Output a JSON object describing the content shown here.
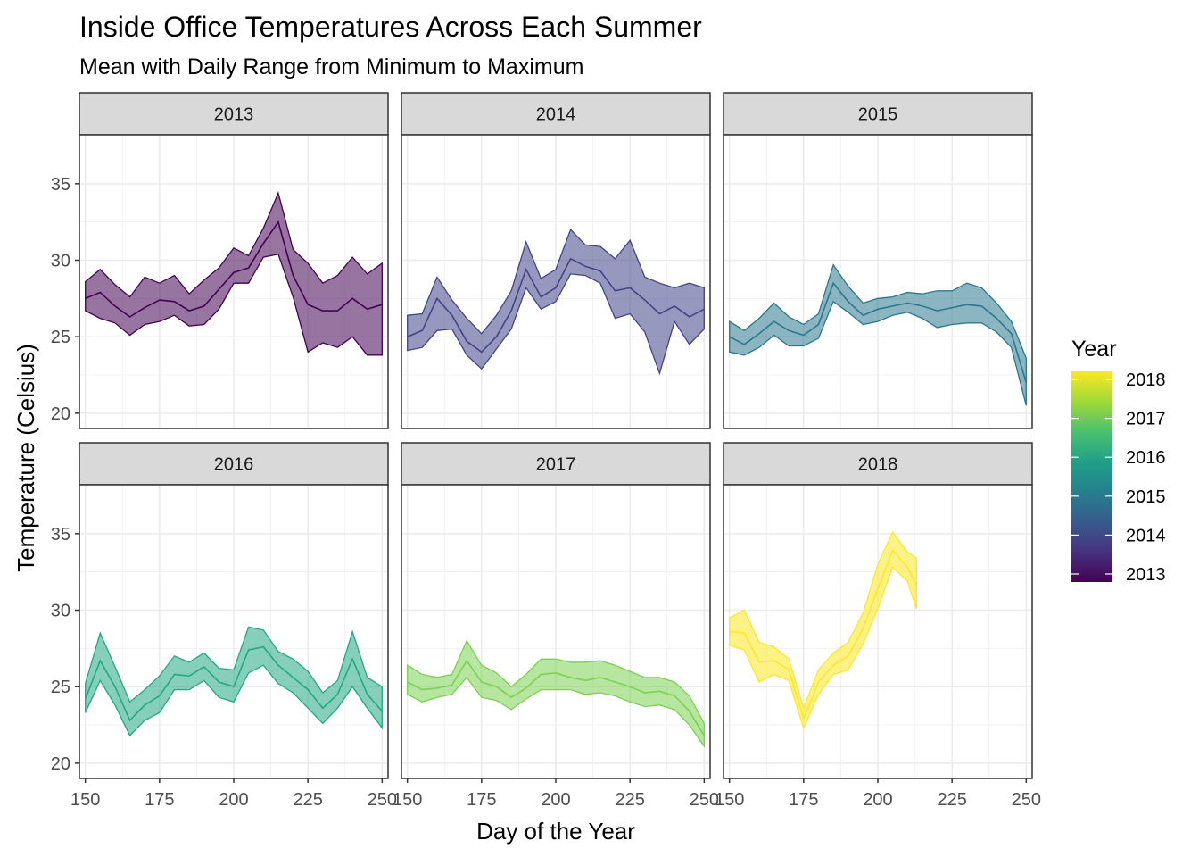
{
  "chart_data": {
    "type": "area",
    "title": "Inside Office Temperatures Across Each Summer",
    "subtitle": "Mean with Daily Range from Minimum to Maximum",
    "xlabel": "Day of the Year",
    "ylabel": "Temperature (Celsius)",
    "xlim": [
      148,
      252
    ],
    "ylim": [
      19.0,
      38.2
    ],
    "x_ticks": [
      150,
      175,
      200,
      225,
      250
    ],
    "y_ticks": [
      20,
      25,
      30,
      35
    ],
    "grid": true,
    "legend": {
      "title": "Year",
      "position": "right",
      "labels": [
        "2018",
        "2017",
        "2016",
        "2015",
        "2014",
        "2013"
      ],
      "gradient_colors": [
        "#fde725",
        "#a0da39",
        "#4ac16d",
        "#1fa187",
        "#277f8e",
        "#365c8d",
        "#46327e",
        "#440154"
      ]
    },
    "facets": [
      {
        "year": "2013",
        "color": "#440154",
        "series": [
          {
            "x": 150,
            "min": 26.7,
            "mean": 27.5,
            "max": 28.6
          },
          {
            "x": 155,
            "min": 26.2,
            "mean": 27.9,
            "max": 29.4
          },
          {
            "x": 160,
            "min": 25.9,
            "mean": 27.0,
            "max": 28.4
          },
          {
            "x": 165,
            "min": 25.1,
            "mean": 26.3,
            "max": 27.6
          },
          {
            "x": 170,
            "min": 25.8,
            "mean": 26.9,
            "max": 28.9
          },
          {
            "x": 175,
            "min": 26.0,
            "mean": 27.4,
            "max": 28.5
          },
          {
            "x": 180,
            "min": 26.4,
            "mean": 27.3,
            "max": 29.0
          },
          {
            "x": 185,
            "min": 25.7,
            "mean": 26.7,
            "max": 27.8
          },
          {
            "x": 190,
            "min": 25.8,
            "mean": 27.0,
            "max": 28.7
          },
          {
            "x": 195,
            "min": 26.8,
            "mean": 28.1,
            "max": 29.5
          },
          {
            "x": 200,
            "min": 28.5,
            "mean": 29.2,
            "max": 30.8
          },
          {
            "x": 205,
            "min": 28.5,
            "mean": 29.5,
            "max": 30.3
          },
          {
            "x": 210,
            "min": 30.2,
            "mean": 31.1,
            "max": 32.1
          },
          {
            "x": 215,
            "min": 30.4,
            "mean": 32.5,
            "max": 34.4
          },
          {
            "x": 220,
            "min": 27.6,
            "mean": 29.0,
            "max": 30.7
          },
          {
            "x": 225,
            "min": 24.0,
            "mean": 27.1,
            "max": 29.8
          },
          {
            "x": 230,
            "min": 24.6,
            "mean": 26.7,
            "max": 28.5
          },
          {
            "x": 235,
            "min": 24.3,
            "mean": 26.7,
            "max": 29.0
          },
          {
            "x": 240,
            "min": 25.0,
            "mean": 27.5,
            "max": 30.2
          },
          {
            "x": 245,
            "min": 23.8,
            "mean": 26.8,
            "max": 29.1
          },
          {
            "x": 250,
            "min": 23.8,
            "mean": 27.1,
            "max": 29.8
          }
        ]
      },
      {
        "year": "2014",
        "color": "#414487",
        "series": [
          {
            "x": 150,
            "min": 24.1,
            "mean": 25.0,
            "max": 26.4
          },
          {
            "x": 155,
            "min": 24.3,
            "mean": 25.4,
            "max": 26.5
          },
          {
            "x": 160,
            "min": 25.4,
            "mean": 27.5,
            "max": 28.9
          },
          {
            "x": 165,
            "min": 25.5,
            "mean": 26.4,
            "max": 27.4
          },
          {
            "x": 170,
            "min": 23.8,
            "mean": 24.7,
            "max": 26.2
          },
          {
            "x": 175,
            "min": 22.9,
            "mean": 24.0,
            "max": 25.2
          },
          {
            "x": 180,
            "min": 24.2,
            "mean": 25.0,
            "max": 26.4
          },
          {
            "x": 185,
            "min": 25.5,
            "mean": 26.7,
            "max": 28.0
          },
          {
            "x": 190,
            "min": 28.2,
            "mean": 29.4,
            "max": 31.2
          },
          {
            "x": 195,
            "min": 26.8,
            "mean": 27.6,
            "max": 28.8
          },
          {
            "x": 200,
            "min": 27.3,
            "mean": 28.2,
            "max": 29.4
          },
          {
            "x": 205,
            "min": 29.1,
            "mean": 30.1,
            "max": 32.0
          },
          {
            "x": 210,
            "min": 29.0,
            "mean": 29.6,
            "max": 31.0
          },
          {
            "x": 215,
            "min": 28.5,
            "mean": 29.3,
            "max": 30.9
          },
          {
            "x": 220,
            "min": 26.2,
            "mean": 28.0,
            "max": 30.1
          },
          {
            "x": 225,
            "min": 26.5,
            "mean": 28.2,
            "max": 31.3
          },
          {
            "x": 230,
            "min": 25.3,
            "mean": 27.4,
            "max": 28.9
          },
          {
            "x": 235,
            "min": 22.6,
            "mean": 26.5,
            "max": 28.5
          },
          {
            "x": 240,
            "min": 26.0,
            "mean": 27.0,
            "max": 28.2
          },
          {
            "x": 245,
            "min": 24.5,
            "mean": 26.3,
            "max": 28.5
          },
          {
            "x": 250,
            "min": 25.5,
            "mean": 26.8,
            "max": 28.2
          }
        ]
      },
      {
        "year": "2015",
        "color": "#2a788e",
        "series": [
          {
            "x": 150,
            "min": 24.0,
            "mean": 25.0,
            "max": 26.0
          },
          {
            "x": 155,
            "min": 23.8,
            "mean": 24.5,
            "max": 25.4
          },
          {
            "x": 160,
            "min": 24.3,
            "mean": 25.2,
            "max": 26.2
          },
          {
            "x": 165,
            "min": 25.1,
            "mean": 26.0,
            "max": 27.2
          },
          {
            "x": 170,
            "min": 24.4,
            "mean": 25.4,
            "max": 26.3
          },
          {
            "x": 175,
            "min": 24.4,
            "mean": 25.1,
            "max": 25.8
          },
          {
            "x": 180,
            "min": 24.9,
            "mean": 25.8,
            "max": 26.5
          },
          {
            "x": 185,
            "min": 27.3,
            "mean": 28.5,
            "max": 29.7
          },
          {
            "x": 190,
            "min": 26.6,
            "mean": 27.3,
            "max": 28.3
          },
          {
            "x": 195,
            "min": 25.8,
            "mean": 26.4,
            "max": 27.2
          },
          {
            "x": 200,
            "min": 26.0,
            "mean": 26.8,
            "max": 27.5
          },
          {
            "x": 205,
            "min": 26.4,
            "mean": 27.0,
            "max": 27.6
          },
          {
            "x": 210,
            "min": 26.6,
            "mean": 27.2,
            "max": 27.9
          },
          {
            "x": 215,
            "min": 26.2,
            "mean": 27.0,
            "max": 27.8
          },
          {
            "x": 220,
            "min": 25.6,
            "mean": 26.7,
            "max": 28.0
          },
          {
            "x": 225,
            "min": 25.8,
            "mean": 26.9,
            "max": 28.0
          },
          {
            "x": 230,
            "min": 25.9,
            "mean": 27.1,
            "max": 28.5
          },
          {
            "x": 235,
            "min": 25.9,
            "mean": 27.0,
            "max": 28.2
          },
          {
            "x": 240,
            "min": 25.3,
            "mean": 26.2,
            "max": 27.2
          },
          {
            "x": 245,
            "min": 24.3,
            "mean": 25.2,
            "max": 26.0
          },
          {
            "x": 250,
            "min": 20.5,
            "mean": 22.0,
            "max": 23.6
          }
        ]
      },
      {
        "year": "2016",
        "color": "#22a884",
        "series": [
          {
            "x": 150,
            "min": 23.3,
            "mean": 24.2,
            "max": 25.2
          },
          {
            "x": 155,
            "min": 25.4,
            "mean": 26.7,
            "max": 28.5
          },
          {
            "x": 160,
            "min": 23.8,
            "mean": 25.0,
            "max": 26.3
          },
          {
            "x": 165,
            "min": 21.8,
            "mean": 22.8,
            "max": 24.0
          },
          {
            "x": 170,
            "min": 22.8,
            "mean": 23.8,
            "max": 24.8
          },
          {
            "x": 175,
            "min": 23.3,
            "mean": 24.4,
            "max": 25.7
          },
          {
            "x": 180,
            "min": 24.8,
            "mean": 25.8,
            "max": 27.0
          },
          {
            "x": 185,
            "min": 24.8,
            "mean": 25.7,
            "max": 26.6
          },
          {
            "x": 190,
            "min": 25.4,
            "mean": 26.3,
            "max": 27.2
          },
          {
            "x": 195,
            "min": 24.3,
            "mean": 25.3,
            "max": 26.2
          },
          {
            "x": 200,
            "min": 24.0,
            "mean": 25.0,
            "max": 26.1
          },
          {
            "x": 205,
            "min": 25.9,
            "mean": 27.4,
            "max": 28.9
          },
          {
            "x": 210,
            "min": 26.4,
            "mean": 27.6,
            "max": 28.7
          },
          {
            "x": 215,
            "min": 25.2,
            "mean": 26.4,
            "max": 27.3
          },
          {
            "x": 220,
            "min": 24.6,
            "mean": 25.6,
            "max": 26.8
          },
          {
            "x": 225,
            "min": 23.6,
            "mean": 24.8,
            "max": 26.0
          },
          {
            "x": 230,
            "min": 22.6,
            "mean": 23.6,
            "max": 24.6
          },
          {
            "x": 235,
            "min": 23.6,
            "mean": 24.5,
            "max": 25.4
          },
          {
            "x": 240,
            "min": 25.0,
            "mean": 26.8,
            "max": 28.6
          },
          {
            "x": 245,
            "min": 23.6,
            "mean": 24.5,
            "max": 25.6
          },
          {
            "x": 250,
            "min": 22.3,
            "mean": 23.4,
            "max": 25.0
          }
        ]
      },
      {
        "year": "2017",
        "color": "#7ad151",
        "series": [
          {
            "x": 150,
            "min": 24.5,
            "mean": 25.3,
            "max": 26.4
          },
          {
            "x": 155,
            "min": 24.0,
            "mean": 24.8,
            "max": 25.8
          },
          {
            "x": 160,
            "min": 24.3,
            "mean": 24.9,
            "max": 25.6
          },
          {
            "x": 165,
            "min": 24.5,
            "mean": 25.1,
            "max": 25.8
          },
          {
            "x": 170,
            "min": 25.6,
            "mean": 26.7,
            "max": 28.0
          },
          {
            "x": 175,
            "min": 24.3,
            "mean": 25.3,
            "max": 26.4
          },
          {
            "x": 180,
            "min": 24.1,
            "mean": 25.0,
            "max": 25.9
          },
          {
            "x": 185,
            "min": 23.5,
            "mean": 24.3,
            "max": 25.0
          },
          {
            "x": 190,
            "min": 24.2,
            "mean": 24.9,
            "max": 25.8
          },
          {
            "x": 195,
            "min": 24.8,
            "mean": 25.8,
            "max": 26.8
          },
          {
            "x": 200,
            "min": 24.8,
            "mean": 25.9,
            "max": 26.8
          },
          {
            "x": 205,
            "min": 24.8,
            "mean": 25.6,
            "max": 26.6
          },
          {
            "x": 210,
            "min": 24.5,
            "mean": 25.4,
            "max": 26.6
          },
          {
            "x": 215,
            "min": 24.6,
            "mean": 25.6,
            "max": 26.7
          },
          {
            "x": 220,
            "min": 24.4,
            "mean": 25.3,
            "max": 26.4
          },
          {
            "x": 225,
            "min": 24.0,
            "mean": 25.0,
            "max": 26.0
          },
          {
            "x": 230,
            "min": 23.7,
            "mean": 24.6,
            "max": 25.6
          },
          {
            "x": 235,
            "min": 23.8,
            "mean": 24.7,
            "max": 25.6
          },
          {
            "x": 240,
            "min": 23.5,
            "mean": 24.4,
            "max": 25.3
          },
          {
            "x": 245,
            "min": 22.5,
            "mean": 23.4,
            "max": 24.4
          },
          {
            "x": 250,
            "min": 21.1,
            "mean": 21.8,
            "max": 22.6
          }
        ]
      },
      {
        "year": "2018",
        "color": "#fde725",
        "series": [
          {
            "x": 150,
            "min": 27.7,
            "mean": 28.6,
            "max": 29.5
          },
          {
            "x": 155,
            "min": 27.4,
            "mean": 28.5,
            "max": 30.0
          },
          {
            "x": 160,
            "min": 25.3,
            "mean": 26.6,
            "max": 27.9
          },
          {
            "x": 165,
            "min": 25.8,
            "mean": 26.7,
            "max": 27.6
          },
          {
            "x": 170,
            "min": 25.4,
            "mean": 26.1,
            "max": 26.8
          },
          {
            "x": 175,
            "min": 22.3,
            "mean": 22.9,
            "max": 23.6
          },
          {
            "x": 180,
            "min": 24.5,
            "mean": 25.3,
            "max": 26.1
          },
          {
            "x": 185,
            "min": 25.8,
            "mean": 26.4,
            "max": 27.2
          },
          {
            "x": 190,
            "min": 26.1,
            "mean": 27.0,
            "max": 27.9
          },
          {
            "x": 195,
            "min": 27.8,
            "mean": 28.8,
            "max": 29.8
          },
          {
            "x": 200,
            "min": 30.1,
            "mean": 31.4,
            "max": 33.0
          },
          {
            "x": 205,
            "min": 32.8,
            "mean": 33.9,
            "max": 35.1
          },
          {
            "x": 210,
            "min": 31.9,
            "mean": 32.8,
            "max": 33.8
          },
          {
            "x": 213,
            "min": 30.1,
            "mean": 31.6,
            "max": 33.4
          }
        ]
      }
    ]
  }
}
